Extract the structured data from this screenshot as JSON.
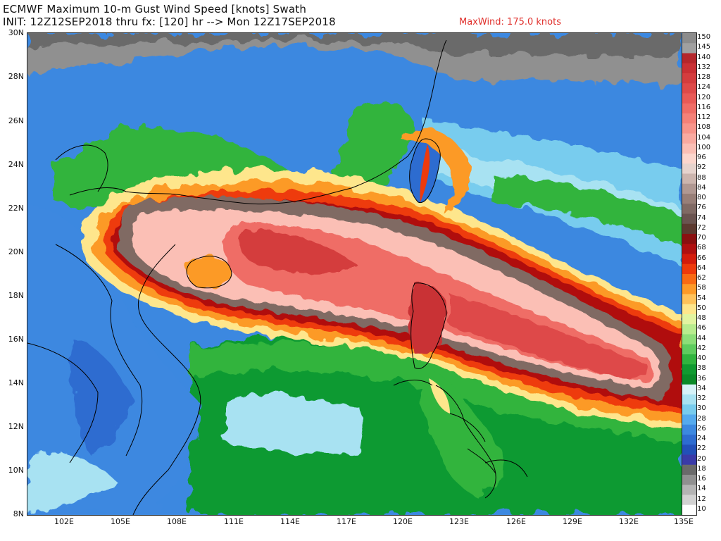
{
  "header": {
    "title": "ECMWF Maximum 10-m Gust Wind Speed [knots] Swath",
    "subtitle": "INIT: 12Z12SEP2018 thru fx: [120] hr --> Mon 12Z17SEP2018",
    "maxwind": "MaxWind: 175.0 knots",
    "maxwind_color": "#e0302c"
  },
  "map": {
    "lat_labels": [
      "30N",
      "28N",
      "26N",
      "24N",
      "22N",
      "20N",
      "18N",
      "16N",
      "14N",
      "12N",
      "10N",
      "8N"
    ],
    "lon_labels": [
      "102E",
      "105E",
      "108E",
      "111E",
      "114E",
      "117E",
      "120E",
      "123E",
      "126E",
      "129E",
      "132E",
      "135E"
    ]
  },
  "legend": {
    "ticks": [
      "150",
      "145",
      "140",
      "132",
      "128",
      "124",
      "120",
      "116",
      "112",
      "108",
      "104",
      "100",
      "96",
      "92",
      "88",
      "84",
      "80",
      "76",
      "74",
      "72",
      "70",
      "68",
      "66",
      "64",
      "62",
      "58",
      "54",
      "50",
      "48",
      "46",
      "44",
      "42",
      "40",
      "38",
      "36",
      "34",
      "32",
      "30",
      "28",
      "26",
      "24",
      "22",
      "20",
      "18",
      "16",
      "14",
      "12",
      "10"
    ],
    "colors": [
      "#8c8c8c",
      "#a0a0a0",
      "#b4262b",
      "#c93034",
      "#d43d3e",
      "#de4a49",
      "#e85a56",
      "#ef6d66",
      "#f48178",
      "#f7958b",
      "#f9aaa0",
      "#fbbfb5",
      "#fcd6cd",
      "#e6d3cd",
      "#ccb5ae",
      "#b09892",
      "#987f78",
      "#806a64",
      "#6a5450",
      "#5c3a30",
      "#8a1010",
      "#b01010",
      "#d41c0c",
      "#ee3a0c",
      "#f86a14",
      "#fc9a28",
      "#fec25a",
      "#fee68c",
      "#e2f4a0",
      "#b8ec8e",
      "#8cde78",
      "#5ecc5e",
      "#30b43e",
      "#109a30",
      "#0a8a28",
      "#d6f2f8",
      "#a8e2f2",
      "#78ccee",
      "#55aaee",
      "#3c88e0",
      "#2d6cd0",
      "#2250b8",
      "#3a3aa8",
      "#6a6a6a",
      "#909090",
      "#b4b4b4",
      "#d2d2d2",
      "#ffffff"
    ]
  }
}
